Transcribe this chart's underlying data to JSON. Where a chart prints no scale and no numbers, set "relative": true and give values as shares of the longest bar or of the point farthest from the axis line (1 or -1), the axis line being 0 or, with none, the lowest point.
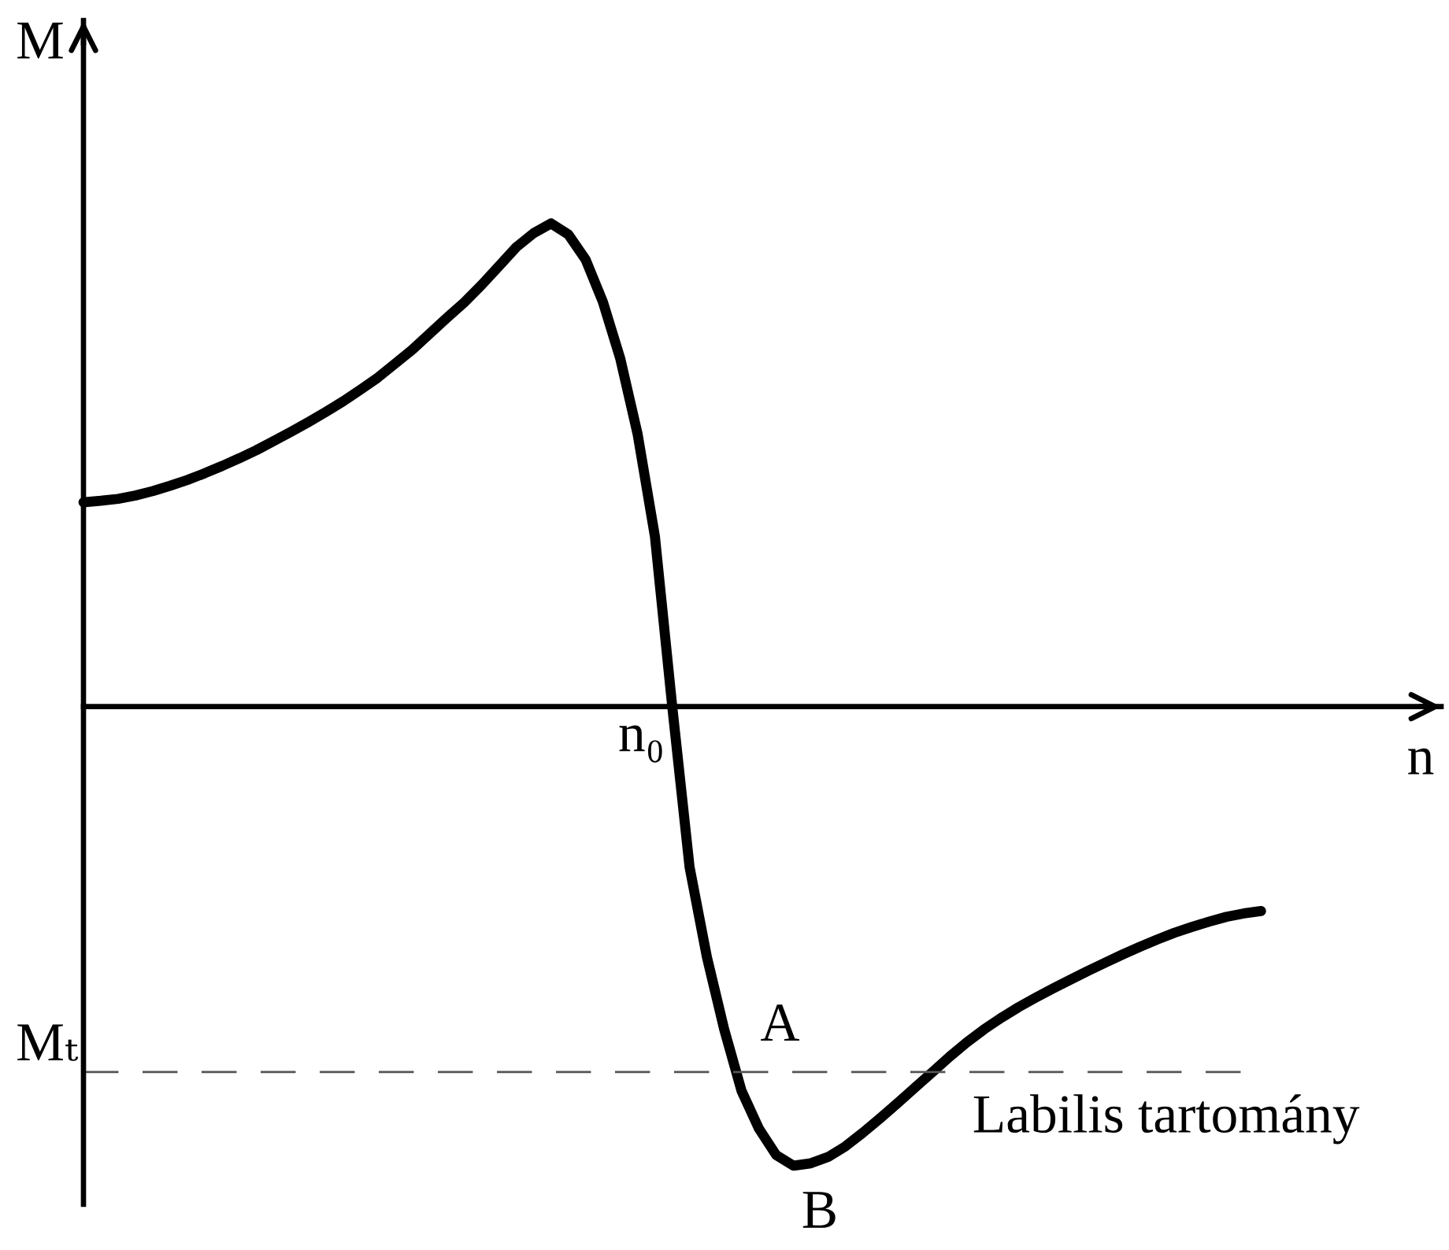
{
  "chart_data": {
    "type": "line",
    "relative": true,
    "xlabel": "n",
    "ylabel": "M",
    "color": "#000000",
    "categories": [
      null,
      null,
      null,
      null,
      null,
      null,
      null,
      null,
      null,
      null,
      null,
      null,
      null,
      null,
      null,
      null,
      null,
      null,
      null,
      null,
      null,
      null,
      null,
      null,
      null,
      null,
      null,
      null,
      null,
      null,
      null,
      null,
      null,
      null,
      null,
      null,
      null,
      null,
      null,
      null,
      null,
      null,
      null,
      null,
      null,
      null,
      null,
      null,
      null,
      null,
      null,
      null,
      null,
      null,
      null,
      null,
      null,
      null,
      null,
      null,
      null,
      null,
      null,
      null,
      null,
      null,
      null,
      null,
      null,
      null,
      null,
      null,
      null,
      null,
      null,
      null,
      null,
      null,
      null
    ],
    "values": [
      0.423,
      0.426,
      0.43,
      0.437,
      0.446,
      0.457,
      0.469,
      0.483,
      0.498,
      0.514,
      0.531,
      0.55,
      0.569,
      0.589,
      0.61,
      0.632,
      0.656,
      0.681,
      0.71,
      0.739,
      0.772,
      0.805,
      0.837,
      0.873,
      0.912,
      0.951,
      0.98,
      1,
      0.977,
      0.925,
      0.837,
      0.72,
      0.564,
      0.352,
      0,
      -0.332,
      -0.518,
      -0.668,
      -0.795,
      -0.873,
      -0.928,
      -0.95,
      -0.945,
      -0.932,
      -0.91,
      -0.882,
      -0.852,
      -0.821,
      -0.789,
      -0.757,
      -0.725,
      -0.695,
      -0.668,
      -0.644,
      -0.622,
      -0.602,
      -0.583,
      -0.565,
      -0.547,
      -0.53,
      -0.513,
      -0.497,
      -0.482,
      -0.468,
      -0.456,
      -0.445,
      -0.435,
      -0.428,
      -0.423,
      null,
      null,
      null,
      null,
      null,
      null,
      null,
      null,
      null,
      null
    ],
    "ref_lines": [
      {
        "axis": "y",
        "value": -0.756,
        "label": "Mₜ",
        "color": "#555555",
        "line_style": "dashed"
      }
    ],
    "annotations": [
      "n₀",
      {
        "text": "A",
        "y": -0.756
      },
      {
        "text": "B",
        "y": -0.95
      },
      "Labilis tartomány"
    ]
  }
}
